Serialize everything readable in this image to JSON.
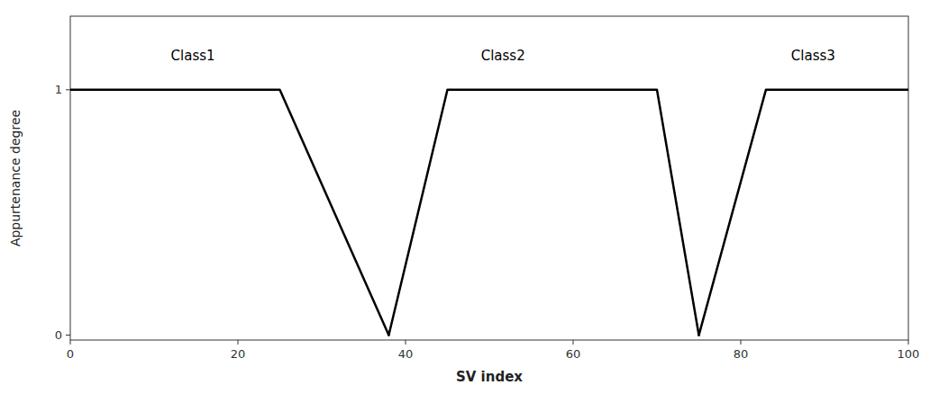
{
  "chart_data": {
    "type": "line",
    "xlabel": "SV index",
    "ylabel": "Appurtenance degree",
    "xlim": [
      0,
      100
    ],
    "ylim": [
      -0.02,
      1.3
    ],
    "xticks": [
      0,
      20,
      40,
      60,
      80,
      100
    ],
    "yticks": [
      0,
      1
    ],
    "grid": false,
    "series": [
      {
        "color": "#000000",
        "x": [
          0,
          25,
          38
        ],
        "values": [
          1,
          1,
          0
        ]
      },
      {
        "color": "#000000",
        "x": [
          38,
          45,
          70,
          75
        ],
        "values": [
          0,
          1,
          1,
          0
        ]
      },
      {
        "color": "#000000",
        "x": [
          75,
          83,
          96,
          100
        ],
        "values": [
          0,
          1,
          1,
          1
        ]
      }
    ],
    "annotations": [
      {
        "text": "Class1",
        "x": 12,
        "y": 1.12
      },
      {
        "text": "Class2",
        "x": 49,
        "y": 1.12
      },
      {
        "text": "Class3",
        "x": 86,
        "y": 1.12
      }
    ]
  }
}
